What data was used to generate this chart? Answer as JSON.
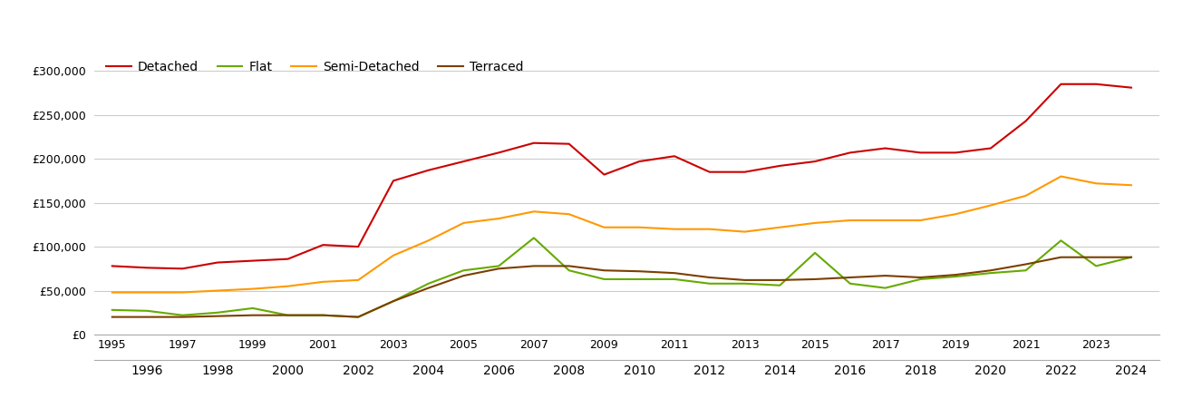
{
  "years": [
    1995,
    1996,
    1997,
    1998,
    1999,
    2000,
    2001,
    2002,
    2003,
    2004,
    2005,
    2006,
    2007,
    2008,
    2009,
    2010,
    2011,
    2012,
    2013,
    2014,
    2015,
    2016,
    2017,
    2018,
    2019,
    2020,
    2021,
    2022,
    2023,
    2024
  ],
  "detached": [
    78000,
    76000,
    75000,
    82000,
    84000,
    86000,
    102000,
    100000,
    175000,
    187000,
    197000,
    207000,
    218000,
    217000,
    182000,
    197000,
    203000,
    185000,
    185000,
    192000,
    197000,
    207000,
    212000,
    207000,
    207000,
    212000,
    243000,
    285000,
    285000,
    281000
  ],
  "flat": [
    28000,
    27000,
    22000,
    25000,
    30000,
    22000,
    22000,
    20000,
    38000,
    58000,
    73000,
    78000,
    110000,
    73000,
    63000,
    63000,
    63000,
    58000,
    58000,
    56000,
    93000,
    58000,
    53000,
    63000,
    66000,
    70000,
    73000,
    107000,
    78000,
    88000
  ],
  "semi_detached": [
    48000,
    48000,
    48000,
    50000,
    52000,
    55000,
    60000,
    62000,
    90000,
    107000,
    127000,
    132000,
    140000,
    137000,
    122000,
    122000,
    120000,
    120000,
    117000,
    122000,
    127000,
    130000,
    130000,
    130000,
    137000,
    147000,
    158000,
    180000,
    172000,
    170000
  ],
  "terraced": [
    20000,
    20000,
    20000,
    21000,
    22000,
    22000,
    22000,
    20000,
    38000,
    53000,
    67000,
    75000,
    78000,
    78000,
    73000,
    72000,
    70000,
    65000,
    62000,
    62000,
    63000,
    65000,
    67000,
    65000,
    68000,
    73000,
    80000,
    88000,
    88000,
    88000
  ],
  "detached_color": "#cc0000",
  "flat_color": "#66aa00",
  "semi_detached_color": "#ff9900",
  "terraced_color": "#7b3f00",
  "background_color": "#ffffff",
  "grid_color": "#cccccc",
  "ylim": [
    0,
    325000
  ],
  "yticks": [
    0,
    50000,
    100000,
    150000,
    200000,
    250000,
    300000
  ],
  "legend_labels": [
    "Detached",
    "Flat",
    "Semi-Detached",
    "Terraced"
  ],
  "xlim": [
    1994.5,
    2024.8
  ]
}
